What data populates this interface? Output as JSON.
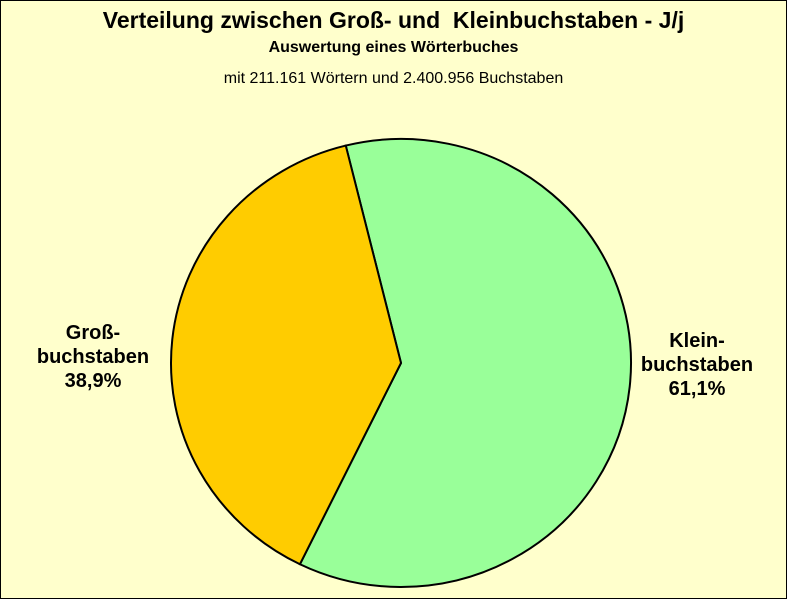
{
  "chart_data": {
    "type": "pie",
    "title": "Verteilung zwischen Groß- und  Kleinbuchstaben - J/j",
    "subtitle": "Auswertung eines Wörterbuches",
    "caption": "mit 211.161 Wörtern und 2.400.956 Buchstaben",
    "slices": [
      {
        "label_lines": [
          "Klein-",
          "buchstaben"
        ],
        "value_label": "61,1%",
        "value": 61.1,
        "color": "#99ff99"
      },
      {
        "label_lines": [
          "Groß-",
          "buchstaben"
        ],
        "value_label": "38,9%",
        "value": 38.9,
        "color": "#ffcc00"
      }
    ],
    "background": "#ffffcc",
    "legend": "none"
  }
}
